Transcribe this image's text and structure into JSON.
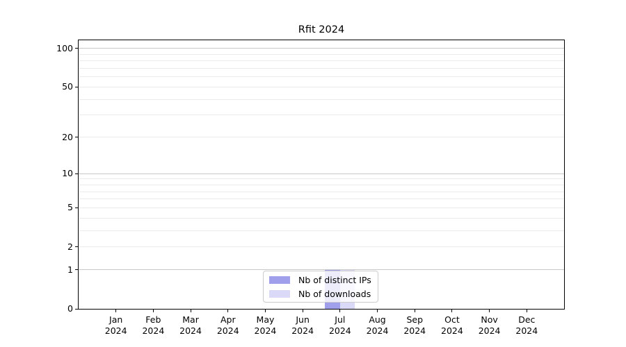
{
  "chart_data": {
    "type": "bar",
    "title": "Rfit 2024",
    "categories": [
      "Jan 2024",
      "Feb 2024",
      "Mar 2024",
      "Apr 2024",
      "May 2024",
      "Jun 2024",
      "Jul 2024",
      "Aug 2024",
      "Sep 2024",
      "Oct 2024",
      "Nov 2024",
      "Dec 2024"
    ],
    "series": [
      {
        "name": "Nb of distinct IPs",
        "color": "#9f9fec",
        "values": [
          0,
          0,
          0,
          0,
          0,
          0,
          1,
          0,
          0,
          0,
          0,
          0
        ]
      },
      {
        "name": "Nb of downloads",
        "color": "#dadaf8",
        "values": [
          0,
          0,
          0,
          0,
          0,
          0,
          1,
          0,
          0,
          0,
          0,
          0
        ]
      }
    ],
    "xlabel": "",
    "ylabel": "",
    "y_axis": {
      "scale": "log10(1+x)",
      "ticks": [
        0,
        1,
        2,
        5,
        10,
        20,
        50,
        100
      ],
      "major_gridlines": [
        1,
        10,
        100
      ],
      "minor_gridlines": [
        2,
        3,
        4,
        5,
        6,
        7,
        8,
        9,
        20,
        30,
        40,
        50,
        60,
        70,
        80,
        90
      ],
      "ylim": [
        0,
        116
      ]
    },
    "legend": {
      "position": "bottom-center"
    },
    "grid": true
  },
  "colors": {
    "background": "#ffffff",
    "frame": "#000000",
    "text": "#000000",
    "major_gridline": "#c8c8c8",
    "minor_gridline": "#ebebeb",
    "legend_border": "#cccccc"
  }
}
